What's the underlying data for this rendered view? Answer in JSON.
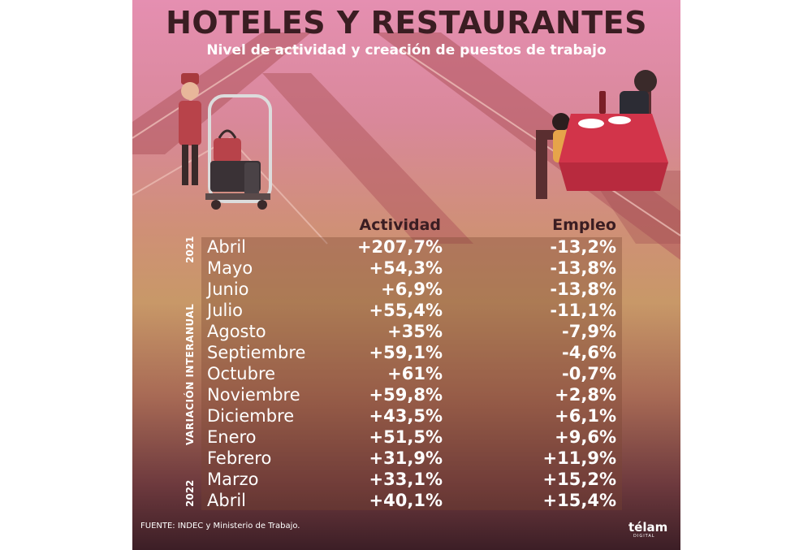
{
  "title": "HOTELES Y RESTAURANTES",
  "subtitle": "Nivel de actividad y creación de puestos de trabajo",
  "columns": {
    "actividad": "Actividad",
    "empleo": "Empleo"
  },
  "side_labels": {
    "year_start": "2021",
    "year_end": "2022",
    "variation": "VARIACIÓN INTERANUAL"
  },
  "rows": [
    {
      "month": "Abril",
      "actividad": "+207,7%",
      "empleo": "-13,2%"
    },
    {
      "month": "Mayo",
      "actividad": "+54,3%",
      "empleo": "-13,8%"
    },
    {
      "month": "Junio",
      "actividad": "+6,9%",
      "empleo": "-13,8%"
    },
    {
      "month": "Julio",
      "actividad": "+55,4%",
      "empleo": "-11,1%"
    },
    {
      "month": "Agosto",
      "actividad": "+35%",
      "empleo": "-7,9%"
    },
    {
      "month": "Septiembre",
      "actividad": "+59,1%",
      "empleo": "-4,6%"
    },
    {
      "month": "Octubre",
      "actividad": "+61%",
      "empleo": "-0,7%"
    },
    {
      "month": "Noviembre",
      "actividad": "+59,8%",
      "empleo": "+2,8%"
    },
    {
      "month": "Diciembre",
      "actividad": "+43,5%",
      "empleo": "+6,1%"
    },
    {
      "month": "Enero",
      "actividad": "+51,5%",
      "empleo": "+9,6%"
    },
    {
      "month": "Febrero",
      "actividad": "+31,9%",
      "empleo": "+11,9%"
    },
    {
      "month": "Marzo",
      "actividad": "+33,1%",
      "empleo": "+15,2%"
    },
    {
      "month": "Abril",
      "actividad": "+40,1%",
      "empleo": "+15,4%"
    }
  ],
  "source": "FUENTE: INDEC y Ministerio de Trabajo.",
  "brand": {
    "name": "télam",
    "sub": "DIGITAL"
  },
  "colors": {
    "title": "#3a1d22",
    "text": "#ffffff",
    "accent": "#a83a3e"
  },
  "chart_data": {
    "type": "table",
    "title": "HOTELES Y RESTAURANTES",
    "subtitle": "Nivel de actividad y creación de puestos de trabajo",
    "categories": [
      "Abril",
      "Mayo",
      "Junio",
      "Julio",
      "Agosto",
      "Septiembre",
      "Octubre",
      "Noviembre",
      "Diciembre",
      "Enero",
      "Febrero",
      "Marzo",
      "Abril"
    ],
    "series": [
      {
        "name": "Actividad",
        "values": [
          207.7,
          54.3,
          6.9,
          55.4,
          35,
          59.1,
          61,
          59.8,
          43.5,
          51.5,
          31.9,
          33.1,
          40.1
        ]
      },
      {
        "name": "Empleo",
        "values": [
          -13.2,
          -13.8,
          -13.8,
          -11.1,
          -7.9,
          -4.6,
          -0.7,
          2.8,
          6.1,
          9.6,
          11.9,
          15.2,
          15.4
        ]
      }
    ]
  }
}
